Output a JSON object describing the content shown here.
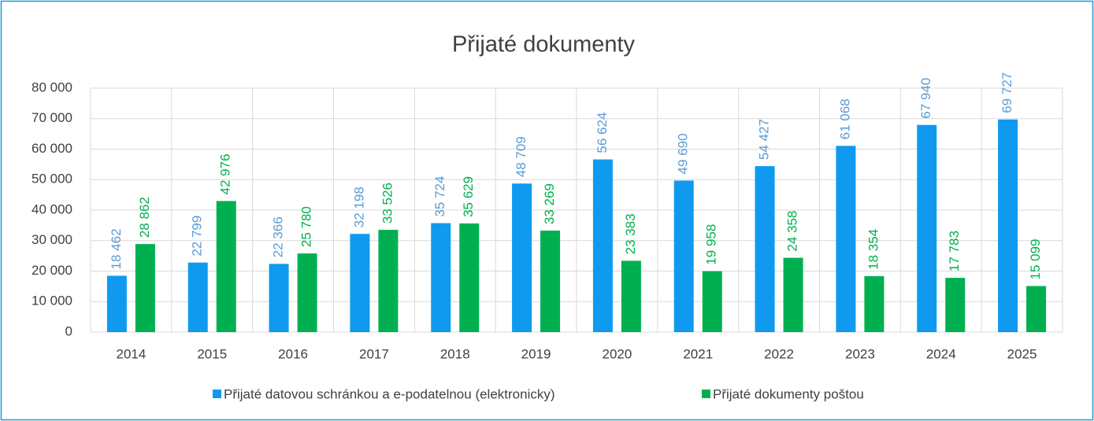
{
  "chart_data": {
    "type": "bar",
    "title": "Přijaté dokumenty",
    "categories": [
      "2014",
      "2015",
      "2016",
      "2017",
      "2018",
      "2019",
      "2020",
      "2021",
      "2022",
      "2023",
      "2024",
      "2025"
    ],
    "series": [
      {
        "name": "Přijaté datovou schránkou a e-podatelnou (elektronicky)",
        "color": "#0f9af0",
        "values": [
          18462,
          22799,
          22366,
          32198,
          35724,
          48709,
          56624,
          49690,
          54427,
          61068,
          67940,
          69727
        ],
        "value_labels": [
          "18 462",
          "22 799",
          "22 366",
          "32 198",
          "35 724",
          "48 709",
          "56 624",
          "49 690",
          "54 427",
          "61 068",
          "67 940",
          "69 727"
        ]
      },
      {
        "name": "Přijaté dokumenty poštou",
        "color": "#00b050",
        "values": [
          28862,
          42976,
          25780,
          33526,
          35629,
          33269,
          23383,
          19958,
          24358,
          18354,
          17783,
          15099
        ],
        "value_labels": [
          "28 862",
          "42 976",
          "25 780",
          "33 526",
          "35 629",
          "33 269",
          "23 383",
          "19 958",
          "24 358",
          "18 354",
          "17 783",
          "15 099"
        ]
      }
    ],
    "ylim": [
      0,
      80000
    ],
    "yticks": [
      0,
      {
        "value": 10000,
        "label": "10 000"
      },
      {
        "value": 20000,
        "label": "20 000"
      },
      {
        "value": 30000,
        "label": "30 000"
      },
      {
        "value": 40000,
        "label": "40 000"
      },
      {
        "value": 50000,
        "label": "50 000"
      },
      {
        "value": 60000,
        "label": "60 000"
      },
      {
        "value": 70000,
        "label": "70 000"
      },
      {
        "value": 80000,
        "label": "80 000"
      }
    ],
    "grid": true,
    "legend": "bottom"
  }
}
